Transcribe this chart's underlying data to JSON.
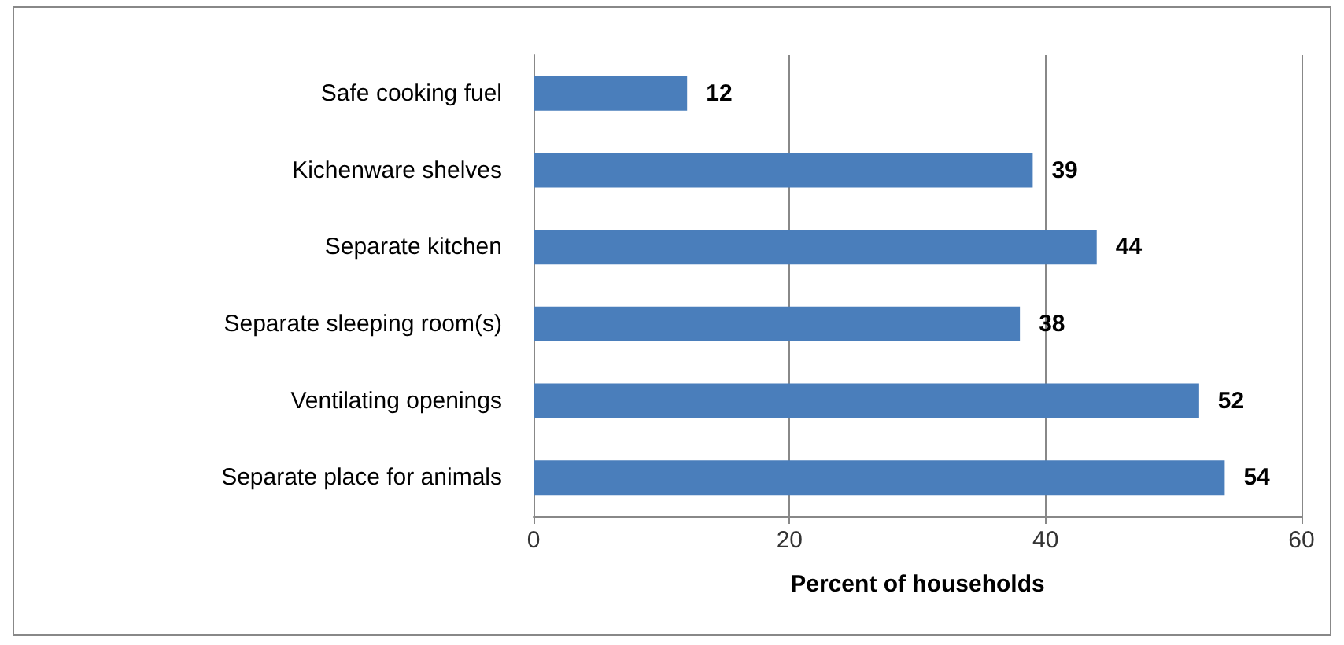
{
  "chart_data": {
    "type": "bar",
    "orientation": "horizontal",
    "xlabel": "Percent of households",
    "categories": [
      "Safe cooking fuel",
      "Kichenware shelves",
      "Separate kitchen",
      "Separate sleeping room(s)",
      "Ventilating openings",
      "Separate place for animals"
    ],
    "values": [
      12,
      39,
      44,
      38,
      52,
      54
    ],
    "color": "#4a7ebb",
    "xlim": [
      0,
      60
    ],
    "xticks": [
      0,
      20,
      40,
      60
    ],
    "grid": "x",
    "data_labels": true
  }
}
